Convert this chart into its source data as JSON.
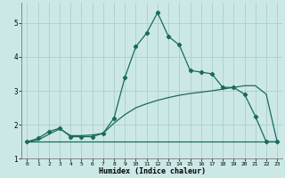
{
  "xlabel": "Humidex (Indice chaleur)",
  "background_color": "#cce8e6",
  "grid_color": "#aacece",
  "line_color": "#1a6b5a",
  "xlim": [
    -0.5,
    23.5
  ],
  "ylim": [
    1.0,
    5.6
  ],
  "xticks": [
    0,
    1,
    2,
    3,
    4,
    5,
    6,
    7,
    8,
    9,
    10,
    11,
    12,
    13,
    14,
    15,
    16,
    17,
    18,
    19,
    20,
    21,
    22,
    23
  ],
  "yticks": [
    1,
    2,
    3,
    4,
    5
  ],
  "curve1_x": [
    0,
    1,
    2,
    3,
    4,
    5,
    6,
    7,
    8,
    9,
    10,
    11,
    12,
    13,
    14,
    15,
    16,
    17,
    18,
    19,
    20,
    21,
    22,
    23
  ],
  "curve1_y": [
    1.5,
    1.6,
    1.8,
    1.9,
    1.65,
    1.65,
    1.65,
    1.75,
    2.2,
    3.4,
    4.3,
    4.7,
    5.3,
    4.6,
    4.35,
    3.6,
    3.55,
    3.5,
    3.1,
    3.1,
    2.9,
    2.25,
    1.5,
    1.5
  ],
  "curve2_x": [
    0,
    1,
    2,
    3,
    4,
    5,
    6,
    7,
    8,
    9,
    10,
    11,
    12,
    13,
    14,
    15,
    16,
    17,
    18,
    19,
    20,
    21,
    22,
    23
  ],
  "curve2_y": [
    1.5,
    1.55,
    1.72,
    1.88,
    1.68,
    1.68,
    1.7,
    1.75,
    2.05,
    2.3,
    2.5,
    2.62,
    2.72,
    2.8,
    2.87,
    2.92,
    2.96,
    3.0,
    3.05,
    3.1,
    3.15,
    3.15,
    2.9,
    1.5
  ],
  "curve3_x": [
    0,
    1,
    2,
    3,
    4,
    5,
    6,
    7,
    8,
    9,
    10,
    11,
    12,
    13,
    14,
    15,
    16,
    17,
    18,
    19,
    20,
    21,
    22,
    23
  ],
  "curve3_y": [
    1.5,
    1.5,
    1.5,
    1.5,
    1.5,
    1.5,
    1.5,
    1.5,
    1.5,
    1.5,
    1.5,
    1.5,
    1.5,
    1.5,
    1.5,
    1.5,
    1.5,
    1.5,
    1.5,
    1.5,
    1.5,
    1.5,
    1.5,
    1.5
  ],
  "figsize": [
    3.2,
    2.0
  ],
  "dpi": 100
}
